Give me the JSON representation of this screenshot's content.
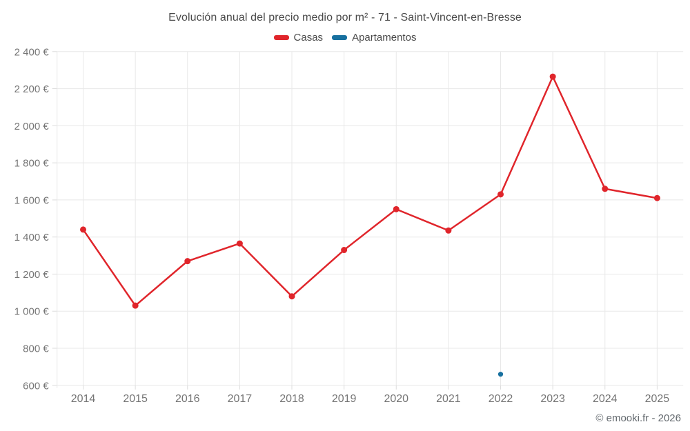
{
  "page": {
    "title": "Evolución anual del precio medio por m² - 71 - Saint-Vincent-en-Bresse",
    "watermark": "© emooki.fr - 2026"
  },
  "legend": {
    "items": [
      {
        "label": "Casas",
        "color": "#e0252b"
      },
      {
        "label": "Apartamentos",
        "color": "#17709f"
      }
    ]
  },
  "chart_data": {
    "type": "line",
    "title": "Evolución anual del precio medio por m² - 71 - Saint-Vincent-en-Bresse",
    "x": [
      2014,
      2015,
      2016,
      2017,
      2018,
      2019,
      2020,
      2021,
      2022,
      2023,
      2024,
      2025
    ],
    "series": [
      {
        "name": "Casas",
        "color": "#e0252b",
        "values": [
          1440,
          1030,
          1270,
          1365,
          1080,
          1330,
          1550,
          1435,
          1630,
          2265,
          1660,
          1610
        ]
      },
      {
        "name": "Apartamentos",
        "color": "#17709f",
        "values": [
          null,
          null,
          null,
          null,
          null,
          null,
          null,
          null,
          660,
          null,
          null,
          null
        ]
      }
    ],
    "xlabel": "",
    "ylabel": "",
    "ylim": [
      600,
      2400
    ],
    "ytick_step": 200,
    "ytick_labels": [
      "600 €",
      "800 €",
      "1 000 €",
      "1 200 €",
      "1 400 €",
      "1 600 €",
      "1 800 €",
      "2 000 €",
      "2 200 €",
      "2 400 €"
    ],
    "grid": true,
    "legend_position": "top",
    "watermark": "© emooki.fr - 2026"
  }
}
